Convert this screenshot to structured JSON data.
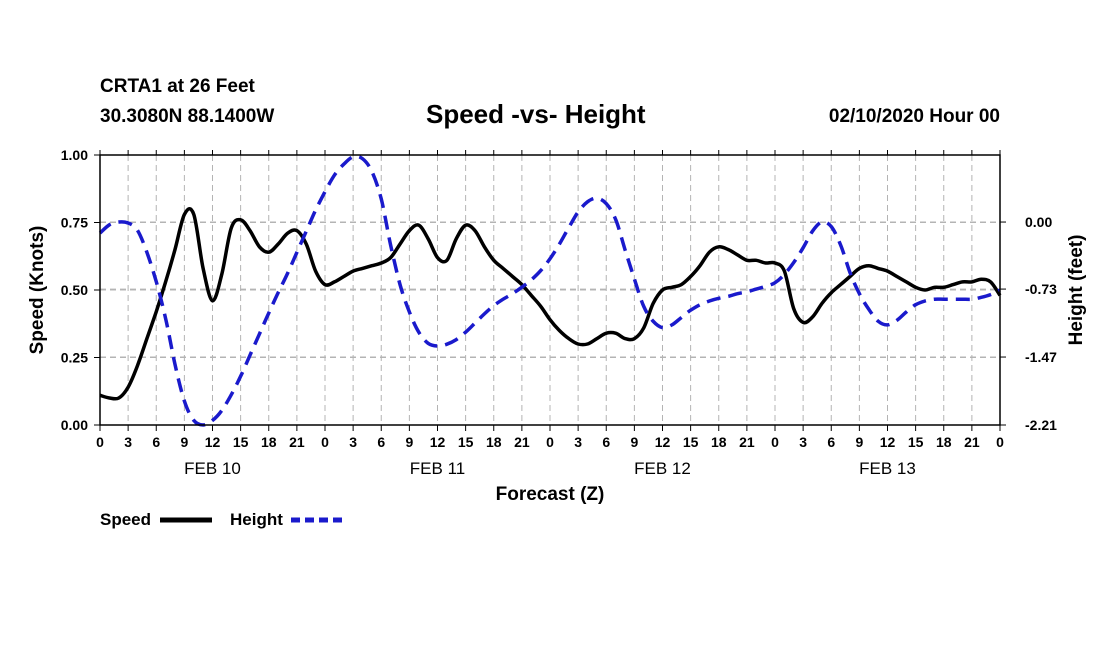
{
  "header": {
    "station": "CRTA1 at 26 Feet",
    "coords": "30.3080N 88.1400W",
    "title": "Speed -vs- Height",
    "datetime": "02/10/2020 Hour 00"
  },
  "colors": {
    "speed": "#000000",
    "height": "#1a1acc",
    "grid": "#b4b4b4"
  },
  "chart_data": {
    "type": "line",
    "title": "Speed -vs- Height",
    "xlabel": "Forecast (Z)",
    "ylabel": "Speed (Knots)",
    "y2label": "Height (feet)",
    "xlim": [
      0,
      96
    ],
    "ylim": [
      0,
      1
    ],
    "y2lim": [
      -2.21,
      0.73
    ],
    "grid": true,
    "x_ticks": [
      0,
      3,
      6,
      9,
      12,
      15,
      18,
      21,
      24,
      27,
      30,
      33,
      36,
      39,
      42,
      45,
      48,
      51,
      54,
      57,
      60,
      63,
      66,
      69,
      72,
      75,
      78,
      81,
      84,
      87,
      90,
      93,
      96
    ],
    "x_tick_labels": [
      "0",
      "3",
      "6",
      "9",
      "12",
      "15",
      "18",
      "21",
      "0",
      "3",
      "6",
      "9",
      "12",
      "15",
      "18",
      "21",
      "0",
      "3",
      "6",
      "9",
      "12",
      "15",
      "18",
      "21",
      "0",
      "3",
      "6",
      "9",
      "12",
      "15",
      "18",
      "21",
      "0"
    ],
    "y_ticks": [
      0,
      0.25,
      0.5,
      0.75,
      1.0
    ],
    "y_tick_labels": [
      "0.00",
      "0.25",
      "0.50",
      "0.75",
      "1.00"
    ],
    "y2_ticks": [
      -2.21,
      -1.47,
      -0.73,
      0.0
    ],
    "y2_tick_labels": [
      "-2.21",
      "-1.47",
      "-0.73",
      "0.00"
    ],
    "day_labels": [
      {
        "label": "FEB 10",
        "at": 12
      },
      {
        "label": "FEB 11",
        "at": 36
      },
      {
        "label": "FEB 12",
        "at": 60
      },
      {
        "label": "FEB 13",
        "at": 84
      }
    ],
    "series": [
      {
        "name": "Speed",
        "axis": "left",
        "style": "solid",
        "x": [
          0,
          1,
          2,
          3,
          4,
          5,
          6,
          7,
          8,
          9,
          10,
          11,
          12,
          13,
          14,
          15,
          16,
          17,
          18,
          19,
          20,
          21,
          22,
          23,
          24,
          25,
          26,
          27,
          28,
          29,
          30,
          31,
          32,
          33,
          34,
          35,
          36,
          37,
          38,
          39,
          40,
          41,
          42,
          43,
          44,
          45,
          46,
          47,
          48,
          49,
          50,
          51,
          52,
          53,
          54,
          55,
          56,
          57,
          58,
          59,
          60,
          61,
          62,
          63,
          64,
          65,
          66,
          67,
          68,
          69,
          70,
          71,
          72,
          73,
          74,
          75,
          76,
          77,
          78,
          79,
          80,
          81,
          82,
          83,
          84,
          85,
          86,
          87,
          88,
          89,
          90,
          91,
          92,
          93,
          94,
          95,
          96
        ],
        "values": [
          0.11,
          0.1,
          0.1,
          0.14,
          0.22,
          0.32,
          0.42,
          0.53,
          0.65,
          0.78,
          0.78,
          0.58,
          0.46,
          0.56,
          0.73,
          0.76,
          0.72,
          0.66,
          0.64,
          0.67,
          0.71,
          0.72,
          0.67,
          0.57,
          0.52,
          0.53,
          0.55,
          0.57,
          0.58,
          0.59,
          0.6,
          0.62,
          0.67,
          0.72,
          0.74,
          0.69,
          0.62,
          0.61,
          0.69,
          0.74,
          0.72,
          0.66,
          0.61,
          0.58,
          0.55,
          0.52,
          0.48,
          0.44,
          0.39,
          0.35,
          0.32,
          0.3,
          0.3,
          0.32,
          0.34,
          0.34,
          0.32,
          0.32,
          0.36,
          0.45,
          0.5,
          0.51,
          0.52,
          0.55,
          0.59,
          0.64,
          0.66,
          0.65,
          0.63,
          0.61,
          0.61,
          0.6,
          0.6,
          0.57,
          0.43,
          0.38,
          0.4,
          0.45,
          0.49,
          0.52,
          0.55,
          0.58,
          0.59,
          0.58,
          0.57,
          0.55,
          0.53,
          0.51,
          0.5,
          0.51,
          0.51,
          0.52,
          0.53,
          0.53,
          0.54,
          0.53,
          0.48
        ]
      },
      {
        "name": "Height",
        "axis": "right",
        "style": "dashed",
        "x": [
          0,
          1,
          2,
          3,
          4,
          5,
          6,
          7,
          8,
          9,
          10,
          11,
          12,
          13,
          14,
          15,
          16,
          17,
          18,
          19,
          20,
          21,
          22,
          23,
          24,
          25,
          26,
          27,
          28,
          29,
          30,
          31,
          32,
          33,
          34,
          35,
          36,
          37,
          38,
          39,
          40,
          41,
          42,
          43,
          44,
          45,
          46,
          47,
          48,
          49,
          50,
          51,
          52,
          53,
          54,
          55,
          56,
          57,
          58,
          59,
          60,
          61,
          62,
          63,
          64,
          65,
          66,
          67,
          68,
          69,
          70,
          71,
          72,
          73,
          74,
          75,
          76,
          77,
          78,
          79,
          80,
          81,
          82,
          83,
          84,
          85,
          86,
          87,
          88,
          89,
          90,
          91,
          92,
          93,
          94,
          95,
          96
        ],
        "values": [
          -0.12,
          -0.03,
          0.0,
          -0.01,
          -0.09,
          -0.33,
          -0.65,
          -1.05,
          -1.55,
          -1.95,
          -2.16,
          -2.21,
          -2.16,
          -2.05,
          -1.88,
          -1.68,
          -1.45,
          -1.22,
          -0.99,
          -0.77,
          -0.56,
          -0.33,
          -0.1,
          0.13,
          0.33,
          0.51,
          0.63,
          0.71,
          0.69,
          0.55,
          0.25,
          -0.25,
          -0.68,
          -0.98,
          -1.2,
          -1.32,
          -1.35,
          -1.33,
          -1.28,
          -1.2,
          -1.1,
          -1.0,
          -0.91,
          -0.84,
          -0.78,
          -0.71,
          -0.63,
          -0.53,
          -0.4,
          -0.24,
          -0.06,
          0.11,
          0.22,
          0.26,
          0.2,
          0.03,
          -0.3,
          -0.62,
          -0.92,
          -1.08,
          -1.15,
          -1.12,
          -1.04,
          -0.96,
          -0.9,
          -0.86,
          -0.83,
          -0.81,
          -0.78,
          -0.76,
          -0.73,
          -0.7,
          -0.66,
          -0.57,
          -0.44,
          -0.28,
          -0.1,
          0.0,
          -0.05,
          -0.25,
          -0.55,
          -0.78,
          -0.95,
          -1.08,
          -1.12,
          -1.07,
          -0.98,
          -0.9,
          -0.86,
          -0.84,
          -0.84,
          -0.84,
          -0.84,
          -0.84,
          -0.82,
          -0.79,
          -0.74
        ]
      }
    ],
    "legend": [
      {
        "label": "Speed",
        "style": "solid"
      },
      {
        "label": "Height",
        "style": "dashed"
      }
    ]
  }
}
